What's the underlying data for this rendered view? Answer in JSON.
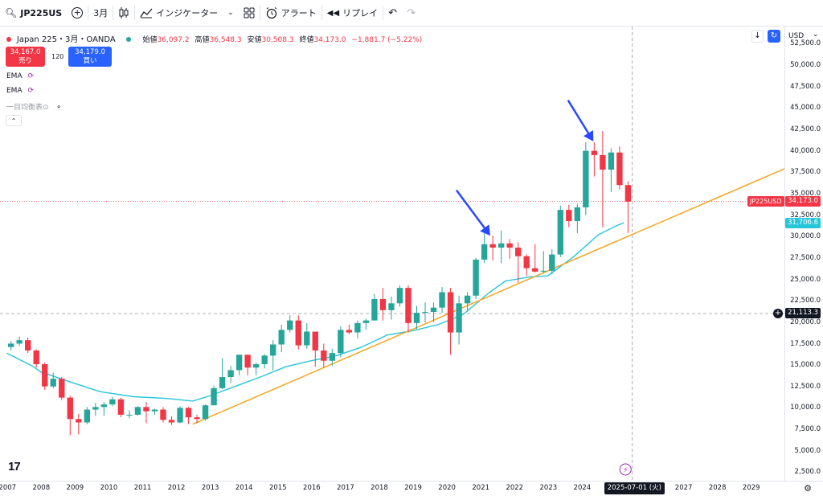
{
  "toolbar": {
    "symbol": "JP225US",
    "interval": "3月",
    "indicators_label": "インジケーター",
    "alert_label": "アラート",
    "replay_label": "リプレイ"
  },
  "legend": {
    "title": "Japan 225・3月・OANDA",
    "open_label": "始値",
    "open": "36,097.2",
    "high_label": "高値",
    "high": "36,548.3",
    "low_label": "安値",
    "low": "30,508.3",
    "close_label": "終値",
    "close": "34,173.0",
    "change": "−1,881.7 (−5.22%)",
    "sell_price": "34,167.0",
    "sell_label": "売り",
    "spread": "120",
    "buy_price": "34,179.0",
    "buy_label": "買い",
    "ema1": "EMA",
    "ema2": "EMA",
    "ichimoku": "一目均衡表⊙"
  },
  "currency": "USD",
  "price_ticks": [
    "52,500.0",
    "50,000.0",
    "47,500.0",
    "45,000.0",
    "42,500.0",
    "40,000.0",
    "37,500.0",
    "35,000.0",
    "32,500.0",
    "30,000.0",
    "27,500.0",
    "25,000.0",
    "22,500.0",
    "20,000.0",
    "17,500.0",
    "15,000.0",
    "12,500.0",
    "10,000.0",
    "7,500.0",
    "5,000.0",
    "2,500.0"
  ],
  "year_ticks": [
    "2007",
    "2008",
    "2009",
    "2010",
    "2011",
    "2012",
    "2013",
    "2014",
    "2015",
    "2016",
    "2017",
    "2018",
    "2019",
    "2020",
    "2021",
    "2022",
    "2023",
    "2024",
    "2027",
    "2028",
    "2029"
  ],
  "badges": {
    "symbol_badge": "JP225USD",
    "last_price": "34,173.0",
    "ema_value": "31,706.6",
    "crosshair_price": "21,113.3",
    "crosshair_date": "2025-07-01 (火)"
  },
  "colors": {
    "up": "#26a69a",
    "down": "#f23645",
    "ema": "#26c6da",
    "trend": "#f5a623",
    "arrow": "#2948ff"
  },
  "chart_data": {
    "type": "candlestick",
    "interval": "quarterly",
    "candles": [
      [
        2007.0,
        17200,
        17900,
        16800,
        17600
      ],
      [
        2007.25,
        17600,
        18400,
        17300,
        18000
      ],
      [
        2007.5,
        18000,
        18300,
        16500,
        16800
      ],
      [
        2007.75,
        16800,
        16900,
        14800,
        15200
      ],
      [
        2008.0,
        15200,
        15400,
        12200,
        12600
      ],
      [
        2008.25,
        12600,
        14200,
        12400,
        13500
      ],
      [
        2008.5,
        13500,
        13700,
        11000,
        11300
      ],
      [
        2008.75,
        11300,
        11500,
        6900,
        8800
      ],
      [
        2009.0,
        8800,
        9400,
        7000,
        8400
      ],
      [
        2009.25,
        8400,
        10200,
        8200,
        9900
      ],
      [
        2009.5,
        9900,
        10700,
        9200,
        10200
      ],
      [
        2009.75,
        10200,
        10800,
        9200,
        10500
      ],
      [
        2010.0,
        10500,
        11400,
        10300,
        11100
      ],
      [
        2010.25,
        11100,
        11300,
        9000,
        9300
      ],
      [
        2010.5,
        9300,
        9800,
        8900,
        9300
      ],
      [
        2010.75,
        9300,
        10300,
        9200,
        10200
      ],
      [
        2011.0,
        10200,
        10800,
        8300,
        9700
      ],
      [
        2011.25,
        9700,
        10000,
        9300,
        9900
      ],
      [
        2011.5,
        9900,
        10200,
        8400,
        8700
      ],
      [
        2011.75,
        8700,
        9100,
        8100,
        8400
      ],
      [
        2012.0,
        8400,
        10300,
        8300,
        10100
      ],
      [
        2012.25,
        10100,
        10200,
        8200,
        9000
      ],
      [
        2012.5,
        9000,
        9300,
        8300,
        8800
      ],
      [
        2012.75,
        8800,
        10500,
        8600,
        10400
      ],
      [
        2013.0,
        10400,
        12700,
        10400,
        12400
      ],
      [
        2013.25,
        12400,
        15900,
        12300,
        13700
      ],
      [
        2013.5,
        13700,
        15000,
        13000,
        14500
      ],
      [
        2013.75,
        14500,
        16300,
        13900,
        16300
      ],
      [
        2014.0,
        16300,
        16300,
        13900,
        14800
      ],
      [
        2014.25,
        14800,
        15400,
        13900,
        15200
      ],
      [
        2014.5,
        15200,
        16400,
        14700,
        16200
      ],
      [
        2014.75,
        16200,
        18000,
        14500,
        17500
      ],
      [
        2015.0,
        17500,
        19800,
        16600,
        19200
      ],
      [
        2015.25,
        19200,
        20900,
        18900,
        20300
      ],
      [
        2015.5,
        20300,
        20900,
        16900,
        17400
      ],
      [
        2015.75,
        17400,
        20000,
        17000,
        19000
      ],
      [
        2016.0,
        19000,
        19000,
        14900,
        16800
      ],
      [
        2016.25,
        16800,
        17600,
        14800,
        15600
      ],
      [
        2016.5,
        15600,
        17000,
        15000,
        16500
      ],
      [
        2016.75,
        16500,
        19600,
        16000,
        19200
      ],
      [
        2017.0,
        19200,
        19800,
        18700,
        18900
      ],
      [
        2017.25,
        18900,
        20300,
        18200,
        20000
      ],
      [
        2017.5,
        20000,
        20500,
        19200,
        20300
      ],
      [
        2017.75,
        20300,
        23400,
        20300,
        22800
      ],
      [
        2018.0,
        22800,
        24100,
        20300,
        21500
      ],
      [
        2018.25,
        21500,
        23100,
        20400,
        22300
      ],
      [
        2018.5,
        22300,
        24400,
        21900,
        24100
      ],
      [
        2018.75,
        24100,
        24400,
        18900,
        20000
      ],
      [
        2019.0,
        20000,
        22000,
        19300,
        21200
      ],
      [
        2019.25,
        21200,
        22400,
        20100,
        21300
      ],
      [
        2019.5,
        21300,
        22400,
        20100,
        21800
      ],
      [
        2019.75,
        21800,
        24200,
        21200,
        23600
      ],
      [
        2020.0,
        23600,
        24100,
        16300,
        18900
      ],
      [
        2020.25,
        18900,
        23200,
        17500,
        22300
      ],
      [
        2020.5,
        22300,
        23600,
        21500,
        23200
      ],
      [
        2020.75,
        23200,
        27600,
        22800,
        27400
      ],
      [
        2021.0,
        27400,
        30700,
        27000,
        29200
      ],
      [
        2021.25,
        29200,
        30200,
        27300,
        28800
      ],
      [
        2021.5,
        28800,
        30800,
        27000,
        29300
      ],
      [
        2021.75,
        29300,
        29800,
        27500,
        28800
      ],
      [
        2022.0,
        28800,
        29400,
        24700,
        27800
      ],
      [
        2022.25,
        27800,
        28000,
        25500,
        26400
      ],
      [
        2022.5,
        26400,
        29200,
        25900,
        26000
      ],
      [
        2022.75,
        26000,
        28400,
        25800,
        26100
      ],
      [
        2023.0,
        26100,
        28600,
        25700,
        28000
      ],
      [
        2023.25,
        28000,
        33700,
        27700,
        33200
      ],
      [
        2023.5,
        33200,
        33800,
        31200,
        31900
      ],
      [
        2023.75,
        31900,
        33900,
        30500,
        33500
      ],
      [
        2024.0,
        33500,
        41100,
        32600,
        40100
      ],
      [
        2024.25,
        40100,
        41100,
        37100,
        39600
      ],
      [
        2024.5,
        39600,
        42400,
        31200,
        37900
      ],
      [
        2024.75,
        37900,
        40400,
        35300,
        39900
      ],
      [
        2025.0,
        39900,
        40600,
        35600,
        36100
      ],
      [
        2025.25,
        36100,
        36550,
        30500,
        34173
      ]
    ],
    "ema": [
      [
        2007.0,
        16500
      ],
      [
        2007.75,
        15000
      ],
      [
        2008.0,
        14300
      ],
      [
        2008.75,
        13300
      ],
      [
        2009.75,
        12000
      ],
      [
        2010.75,
        11400
      ],
      [
        2011.75,
        11200
      ],
      [
        2012.5,
        10900
      ],
      [
        2013.0,
        11500
      ],
      [
        2013.75,
        12600
      ],
      [
        2014.5,
        13700
      ],
      [
        2015.25,
        14900
      ],
      [
        2016.0,
        15600
      ],
      [
        2016.75,
        16200
      ],
      [
        2017.5,
        17200
      ],
      [
        2018.25,
        18600
      ],
      [
        2019.0,
        19100
      ],
      [
        2019.75,
        19800
      ],
      [
        2020.5,
        21000
      ],
      [
        2021.25,
        23500
      ],
      [
        2021.75,
        24900
      ],
      [
        2022.5,
        25400
      ],
      [
        2023.0,
        25500
      ],
      [
        2023.75,
        27700
      ],
      [
        2024.5,
        30300
      ],
      [
        2025.0,
        31300
      ],
      [
        2025.25,
        31700
      ]
    ],
    "trendline": [
      [
        2012.5,
        8200
      ],
      [
        2030.0,
        38000
      ]
    ],
    "xlim": [
      2006.8,
      2030.0
    ],
    "ylim": [
      1600,
      54600
    ]
  }
}
